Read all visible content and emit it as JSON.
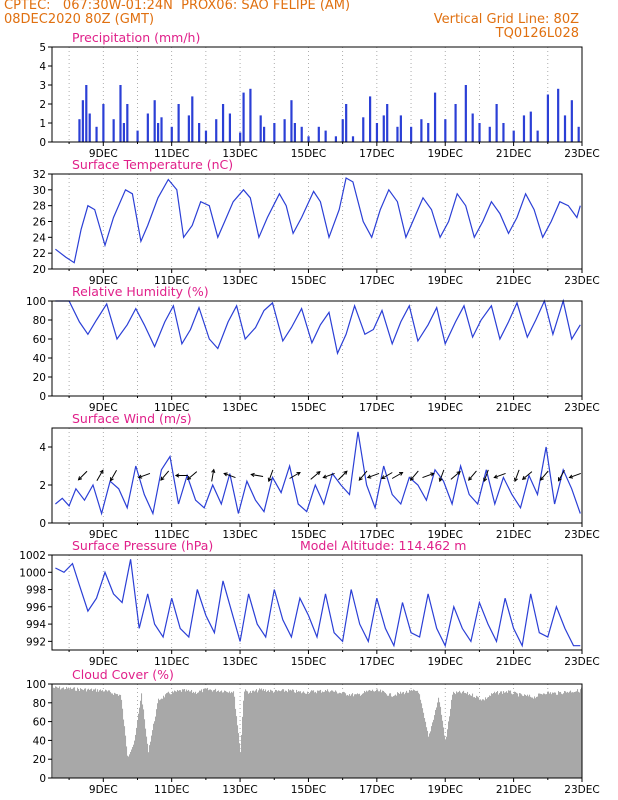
{
  "header": {
    "line1_left": "CPTEC:   067:30W-01:24N  PROX06: SAO FELIPE (AM)",
    "line2_left": "08DEC2020 80Z (GMT)",
    "line2_right": "Vertical Grid Line: 80Z",
    "line3_right": "TQ0126L028"
  },
  "colors": {
    "header": "#e07010",
    "title": "#e0208a",
    "line": "#2b3fd6",
    "cloud": "#a8a8a8",
    "arrow": "#000000"
  },
  "chart_data": [
    {
      "type": "bar",
      "title": "Precipitation (mm/h)",
      "ylim": [
        0,
        5
      ],
      "yticks": [
        "0",
        "1",
        "2",
        "3",
        "4",
        "5"
      ],
      "xticks": [
        "9DEC",
        "11DEC",
        "13DEC",
        "15DEC",
        "17DEC",
        "19DEC",
        "21DEC",
        "23DEC"
      ],
      "x": [
        8.3,
        8.4,
        8.5,
        8.6,
        8.8,
        9.0,
        9.3,
        9.5,
        9.6,
        9.7,
        10.0,
        10.3,
        10.5,
        10.6,
        10.7,
        11.0,
        11.2,
        11.5,
        11.6,
        11.8,
        12.0,
        12.3,
        12.5,
        12.7,
        13.0,
        13.1,
        13.3,
        13.6,
        13.7,
        14.0,
        14.3,
        14.5,
        14.6,
        14.8,
        15.0,
        15.3,
        15.5,
        15.8,
        16.0,
        16.1,
        16.3,
        16.6,
        16.8,
        17.0,
        17.2,
        17.3,
        17.6,
        17.7,
        18.0,
        18.3,
        18.5,
        18.7,
        19.0,
        19.3,
        19.6,
        19.8,
        20.0,
        20.3,
        20.5,
        20.7,
        21.0,
        21.3,
        21.5,
        21.7,
        22.0,
        22.3,
        22.5,
        22.7,
        22.9
      ],
      "values": [
        1.2,
        2.2,
        3.0,
        1.5,
        0.8,
        2.0,
        1.2,
        3.0,
        1.0,
        2.0,
        0.6,
        1.5,
        2.2,
        1.0,
        1.3,
        0.8,
        2.0,
        1.4,
        2.4,
        1.0,
        0.6,
        1.2,
        2.0,
        1.5,
        0.5,
        2.6,
        2.8,
        1.4,
        0.8,
        1.0,
        1.2,
        2.2,
        1.0,
        0.8,
        0.3,
        0.8,
        0.6,
        0.3,
        1.2,
        2.0,
        0.3,
        1.3,
        2.4,
        1.0,
        1.4,
        2.0,
        0.8,
        1.4,
        0.8,
        1.2,
        1.0,
        2.6,
        1.2,
        2.0,
        3.0,
        1.5,
        1.0,
        0.8,
        2.0,
        1.0,
        0.6,
        1.4,
        1.6,
        0.6,
        2.5,
        2.8,
        1.4,
        2.2,
        0.8
      ]
    },
    {
      "type": "line",
      "title": "Surface Temperature (nC)",
      "ylim": [
        20,
        32
      ],
      "yticks": [
        "20",
        "22",
        "24",
        "26",
        "28",
        "30",
        "32"
      ],
      "xticks": [
        "9DEC",
        "11DEC",
        "13DEC",
        "15DEC",
        "17DEC",
        "19DEC",
        "21DEC",
        "23DEC"
      ],
      "x": [
        7.6,
        7.9,
        8.15,
        8.35,
        8.55,
        8.75,
        9.05,
        9.3,
        9.65,
        9.85,
        10.1,
        10.3,
        10.6,
        10.9,
        11.15,
        11.35,
        11.6,
        11.85,
        12.1,
        12.35,
        12.55,
        12.8,
        13.1,
        13.3,
        13.55,
        13.8,
        14.15,
        14.35,
        14.55,
        14.8,
        15.15,
        15.35,
        15.6,
        15.9,
        16.1,
        16.3,
        16.6,
        16.85,
        17.1,
        17.35,
        17.6,
        17.85,
        18.1,
        18.35,
        18.6,
        18.85,
        19.1,
        19.35,
        19.6,
        19.85,
        20.1,
        20.35,
        20.6,
        20.85,
        21.1,
        21.35,
        21.6,
        21.85,
        22.1,
        22.35,
        22.6,
        22.85,
        22.95
      ],
      "values": [
        22.5,
        21.5,
        20.8,
        25.0,
        28.0,
        27.5,
        23.0,
        26.5,
        30.0,
        29.5,
        23.5,
        25.5,
        29.0,
        31.3,
        30.0,
        24.0,
        25.5,
        28.5,
        28.0,
        24.0,
        26.0,
        28.5,
        30.0,
        29.0,
        24.0,
        26.5,
        29.5,
        28.0,
        24.5,
        26.5,
        29.8,
        28.5,
        24.0,
        27.5,
        31.5,
        31.0,
        26.0,
        24.0,
        27.5,
        30.0,
        28.5,
        24.0,
        26.5,
        29.0,
        27.5,
        24.0,
        26.0,
        29.5,
        28.0,
        24.0,
        26.0,
        28.5,
        27.0,
        24.5,
        26.5,
        29.5,
        27.5,
        24.0,
        26.0,
        28.5,
        28.0,
        26.5,
        28.0
      ]
    },
    {
      "type": "line",
      "title": "Relative Humidity (%)",
      "ylim": [
        0,
        100
      ],
      "yticks": [
        "0",
        "20",
        "40",
        "60",
        "80",
        "100"
      ],
      "xticks": [
        "9DEC",
        "11DEC",
        "13DEC",
        "15DEC",
        "17DEC",
        "19DEC",
        "21DEC",
        "23DEC"
      ],
      "x": [
        7.6,
        8.0,
        8.3,
        8.55,
        8.8,
        9.1,
        9.4,
        9.7,
        9.95,
        10.2,
        10.5,
        10.8,
        11.05,
        11.3,
        11.55,
        11.8,
        12.1,
        12.35,
        12.65,
        12.9,
        13.15,
        13.45,
        13.7,
        13.95,
        14.25,
        14.5,
        14.8,
        15.1,
        15.35,
        15.6,
        15.85,
        16.1,
        16.35,
        16.65,
        16.9,
        17.15,
        17.45,
        17.7,
        17.95,
        18.2,
        18.5,
        18.75,
        19.0,
        19.3,
        19.55,
        19.8,
        20.05,
        20.35,
        20.6,
        20.85,
        21.1,
        21.4,
        21.65,
        21.9,
        22.15,
        22.45,
        22.7,
        22.95
      ],
      "values": [
        100,
        100,
        78,
        65,
        80,
        97,
        60,
        75,
        92,
        75,
        52,
        78,
        95,
        55,
        70,
        93,
        60,
        50,
        78,
        95,
        60,
        72,
        90,
        98,
        58,
        72,
        92,
        56,
        75,
        88,
        45,
        65,
        95,
        65,
        70,
        90,
        55,
        78,
        95,
        58,
        75,
        93,
        55,
        78,
        95,
        62,
        80,
        95,
        60,
        78,
        98,
        62,
        80,
        100,
        65,
        100,
        60,
        75
      ]
    },
    {
      "type": "line",
      "title": "Surface Wind (m/s)",
      "ylim": [
        0,
        5
      ],
      "yticks": [
        "0",
        "2",
        "4"
      ],
      "xticks": [
        "9DEC",
        "11DEC",
        "13DEC",
        "15DEC",
        "17DEC",
        "19DEC",
        "21DEC",
        "23DEC"
      ],
      "x": [
        7.6,
        7.8,
        8.0,
        8.2,
        8.45,
        8.7,
        8.95,
        9.2,
        9.45,
        9.7,
        9.95,
        10.2,
        10.45,
        10.7,
        10.95,
        11.2,
        11.45,
        11.7,
        11.95,
        12.2,
        12.45,
        12.7,
        12.95,
        13.2,
        13.45,
        13.7,
        13.95,
        14.2,
        14.45,
        14.7,
        14.95,
        15.2,
        15.45,
        15.7,
        15.95,
        16.2,
        16.45,
        16.7,
        16.95,
        17.2,
        17.45,
        17.7,
        17.95,
        18.2,
        18.45,
        18.7,
        18.95,
        19.2,
        19.45,
        19.7,
        19.95,
        20.2,
        20.45,
        20.7,
        20.95,
        21.2,
        21.45,
        21.7,
        21.95,
        22.2,
        22.45,
        22.7,
        22.95
      ],
      "values": [
        1.0,
        1.3,
        0.9,
        1.8,
        1.2,
        2.0,
        0.5,
        2.2,
        1.8,
        0.8,
        3.0,
        1.5,
        0.5,
        2.8,
        3.5,
        1.0,
        2.5,
        1.2,
        0.8,
        2.0,
        1.0,
        2.6,
        0.5,
        2.2,
        1.2,
        0.6,
        2.4,
        1.6,
        3.0,
        1.0,
        0.6,
        2.0,
        1.0,
        2.6,
        2.0,
        1.5,
        4.8,
        2.0,
        0.8,
        3.0,
        1.5,
        1.0,
        2.4,
        2.0,
        1.2,
        2.8,
        2.2,
        1.0,
        3.0,
        1.5,
        1.0,
        2.8,
        1.0,
        2.4,
        1.5,
        0.8,
        2.5,
        1.5,
        4.0,
        1.0,
        2.8,
        1.8,
        0.5
      ],
      "arrows": [
        [
          8.4,
          225
        ],
        [
          8.9,
          60
        ],
        [
          9.3,
          240
        ],
        [
          10.2,
          200
        ],
        [
          10.8,
          230
        ],
        [
          11.3,
          180
        ],
        [
          11.6,
          220
        ],
        [
          12.2,
          80
        ],
        [
          12.7,
          160
        ],
        [
          13.5,
          170
        ],
        [
          13.9,
          250
        ],
        [
          14.6,
          30
        ],
        [
          15.2,
          40
        ],
        [
          15.6,
          200
        ],
        [
          16.0,
          45
        ],
        [
          16.6,
          230
        ],
        [
          16.9,
          200
        ],
        [
          17.3,
          210
        ],
        [
          17.6,
          30
        ],
        [
          18.1,
          230
        ],
        [
          18.5,
          20
        ],
        [
          18.9,
          250
        ],
        [
          19.3,
          40
        ],
        [
          19.8,
          230
        ],
        [
          20.2,
          250
        ],
        [
          20.6,
          200
        ],
        [
          21.1,
          250
        ],
        [
          21.4,
          220
        ],
        [
          21.9,
          230
        ],
        [
          22.4,
          240
        ],
        [
          22.8,
          200
        ]
      ]
    },
    {
      "type": "line",
      "title": "Surface Pressure (hPa)",
      "subtitle": "Model Altitude: 114.462 m",
      "ylim": [
        991,
        1002
      ],
      "yticks": [
        "992",
        "994",
        "996",
        "998",
        "1000",
        "1002"
      ],
      "xticks": [
        "9DEC",
        "11DEC",
        "13DEC",
        "15DEC",
        "17DEC",
        "19DEC",
        "21DEC",
        "23DEC"
      ],
      "x": [
        7.6,
        7.85,
        8.1,
        8.3,
        8.55,
        8.8,
        9.05,
        9.3,
        9.55,
        9.8,
        10.05,
        10.3,
        10.5,
        10.75,
        11.0,
        11.25,
        11.5,
        11.75,
        12.0,
        12.25,
        12.5,
        12.75,
        13.0,
        13.25,
        13.5,
        13.75,
        14.0,
        14.25,
        14.5,
        14.75,
        15.0,
        15.25,
        15.5,
        15.75,
        16.0,
        16.25,
        16.5,
        16.75,
        17.0,
        17.25,
        17.5,
        17.75,
        18.0,
        18.25,
        18.5,
        18.75,
        19.0,
        19.25,
        19.5,
        19.75,
        20.0,
        20.25,
        20.5,
        20.75,
        21.0,
        21.25,
        21.5,
        21.75,
        22.0,
        22.25,
        22.5,
        22.75,
        22.95
      ],
      "values": [
        1000.5,
        1000.0,
        1001.0,
        998.5,
        995.5,
        997.0,
        1000.0,
        997.5,
        996.5,
        1001.5,
        993.5,
        997.5,
        994.0,
        992.5,
        997.0,
        993.5,
        992.5,
        998.0,
        995.0,
        993.0,
        999.0,
        995.5,
        992.0,
        997.5,
        994.0,
        992.5,
        998.0,
        994.5,
        992.5,
        997.0,
        995.0,
        992.5,
        997.5,
        993.0,
        992.0,
        998.0,
        994.0,
        992.0,
        997.0,
        993.5,
        991.5,
        996.5,
        993.0,
        992.5,
        997.5,
        993.5,
        991.5,
        996.0,
        993.5,
        992.0,
        996.5,
        994.0,
        992.0,
        997.0,
        993.5,
        991.5,
        997.5,
        993.0,
        992.5,
        996.0,
        993.5,
        991.5,
        991.5
      ]
    },
    {
      "type": "area",
      "title": "Cloud Cover (%)",
      "ylim": [
        0,
        100
      ],
      "yticks": [
        "0",
        "20",
        "40",
        "60",
        "80",
        "100"
      ],
      "xticks": [
        "9DEC",
        "11DEC",
        "13DEC",
        "15DEC",
        "17DEC",
        "19DEC",
        "21DEC",
        "23DEC"
      ],
      "x": [
        7.6,
        8.0,
        8.5,
        9.0,
        9.5,
        9.7,
        9.9,
        10.1,
        10.3,
        10.6,
        10.9,
        11.3,
        11.7,
        12.0,
        12.4,
        12.8,
        13.0,
        13.1,
        13.3,
        13.6,
        14.0,
        14.4,
        14.8,
        15.2,
        15.6,
        16.0,
        16.4,
        16.8,
        17.1,
        17.4,
        17.8,
        18.2,
        18.5,
        18.8,
        19.0,
        19.2,
        19.5,
        19.8,
        20.1,
        20.4,
        20.8,
        21.2,
        21.6,
        21.9,
        22.2,
        22.6,
        22.95
      ],
      "values": [
        98,
        97,
        96,
        95,
        90,
        25,
        40,
        92,
        30,
        85,
        92,
        95,
        93,
        96,
        95,
        94,
        30,
        95,
        93,
        96,
        94,
        95,
        93,
        94,
        95,
        92,
        90,
        95,
        94,
        90,
        93,
        95,
        45,
        88,
        40,
        92,
        93,
        90,
        85,
        92,
        94,
        90,
        88,
        93,
        92,
        94,
        95
      ]
    }
  ]
}
